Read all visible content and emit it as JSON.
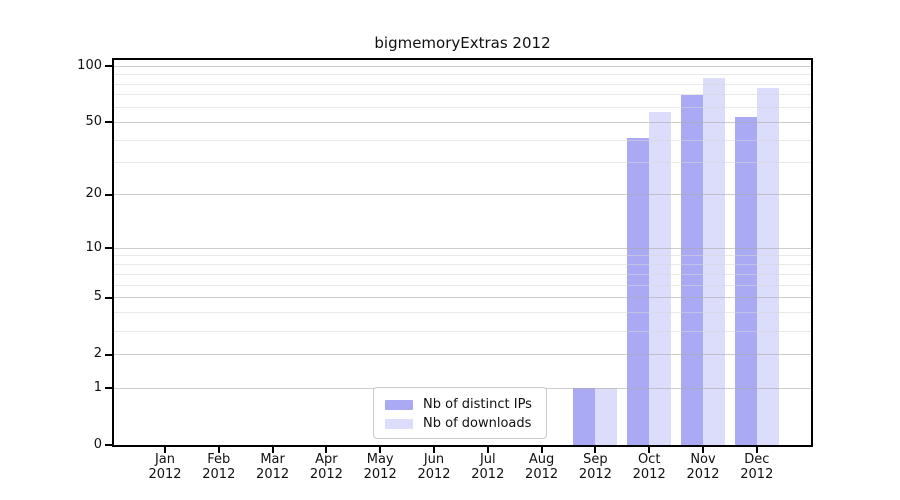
{
  "title": "bigmemoryExtras 2012",
  "chart_data": {
    "type": "bar",
    "title": "bigmemoryExtras 2012",
    "year": "2012",
    "categories": [
      "Jan",
      "Feb",
      "Mar",
      "Apr",
      "May",
      "Jun",
      "Jul",
      "Aug",
      "Sep",
      "Oct",
      "Nov",
      "Dec"
    ],
    "xtick_labels": [
      "Jan\n2012",
      "Feb\n2012",
      "Mar\n2012",
      "Apr\n2012",
      "May\n2012",
      "Jun\n2012",
      "Jul\n2012",
      "Aug\n2012",
      "Sep\n2012",
      "Oct\n2012",
      "Nov\n2012",
      "Dec\n2012"
    ],
    "series": [
      {
        "name": "Nb of distinct IPs",
        "color": "#a9aaf3",
        "values": [
          0,
          0,
          0,
          0,
          0,
          0,
          0,
          0,
          1,
          41,
          70,
          53
        ]
      },
      {
        "name": "Nb of downloads",
        "color": "#dcddfa",
        "values": [
          0,
          0,
          0,
          0,
          0,
          0,
          0,
          0,
          1,
          57,
          86,
          76
        ]
      }
    ],
    "yscale": "log1p",
    "ylim": [
      0,
      108
    ],
    "ytick_values": [
      0,
      1,
      2,
      5,
      10,
      20,
      50,
      100
    ],
    "minor_grid_values": [
      3,
      4,
      6,
      7,
      8,
      9,
      30,
      40,
      60,
      70,
      80,
      90
    ],
    "grid": true,
    "legend_position": "bottom-center",
    "xlabel": "",
    "ylabel": ""
  }
}
